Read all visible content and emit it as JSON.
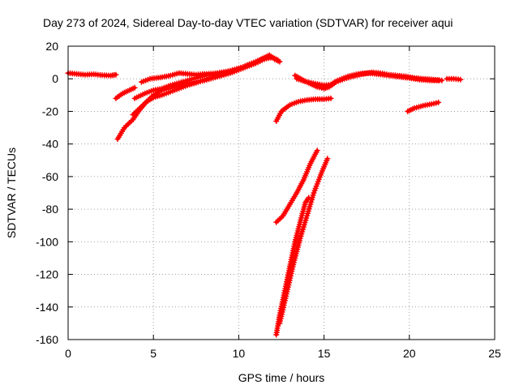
{
  "chart_data": {
    "type": "scatter",
    "title": "Day 273 of 2024, Sidereal Day-to-day VTEC variation (SDTVAR) for receiver aqui",
    "xlabel": "GPS time / hours",
    "ylabel": "SDTVAR / TECUs",
    "xlim": [
      0,
      25
    ],
    "ylim": [
      -160,
      20
    ],
    "xticks": [
      "0",
      "5",
      "10",
      "15",
      "20",
      "25"
    ],
    "yticks": [
      "20",
      "0",
      "-20",
      "-40",
      "-60",
      "-80",
      "-100",
      "-120",
      "-140",
      "-160"
    ],
    "grid": true,
    "legend": "none",
    "marker": "plus",
    "color": "#ff0000",
    "series": [
      {
        "points": [
          [
            0.0,
            3.5
          ],
          [
            0.5,
            3.0
          ],
          [
            1.0,
            2.5
          ],
          [
            1.5,
            2.8
          ],
          [
            2.0,
            2.2
          ],
          [
            2.5,
            2.0
          ],
          [
            2.8,
            2.5
          ]
        ]
      },
      {
        "points": [
          [
            2.8,
            -12.0
          ],
          [
            3.2,
            -9.0
          ],
          [
            3.6,
            -7.0
          ],
          [
            3.9,
            -5.5
          ]
        ]
      },
      {
        "points": [
          [
            2.9,
            -37.0
          ],
          [
            3.3,
            -30.0
          ],
          [
            3.8,
            -25.0
          ],
          [
            4.2,
            -19.0
          ],
          [
            4.6,
            -14.0
          ],
          [
            5.0,
            -10.0
          ],
          [
            5.5,
            -7.0
          ],
          [
            6.0,
            -5.5
          ],
          [
            6.5,
            -4.0
          ],
          [
            7.0,
            -3.0
          ],
          [
            7.5,
            -2.0
          ],
          [
            8.0,
            -1.0
          ],
          [
            8.5,
            0.5
          ],
          [
            9.0,
            2.0
          ],
          [
            9.5,
            3.5
          ],
          [
            10.0,
            5.5
          ],
          [
            10.5,
            7.5
          ],
          [
            11.0,
            9.5
          ],
          [
            11.5,
            12.0
          ],
          [
            11.9,
            13.5
          ]
        ]
      },
      {
        "points": [
          [
            3.8,
            -22.0
          ],
          [
            4.2,
            -18.0
          ],
          [
            4.6,
            -14.0
          ],
          [
            5.0,
            -11.5
          ],
          [
            5.5,
            -10.0
          ],
          [
            6.0,
            -8.0
          ],
          [
            6.5,
            -6.0
          ],
          [
            7.0,
            -4.0
          ],
          [
            7.5,
            -2.5
          ],
          [
            8.0,
            -0.5
          ],
          [
            8.5,
            1.0
          ],
          [
            9.0,
            2.5
          ],
          [
            9.5,
            4.0
          ],
          [
            10.0,
            6.0
          ],
          [
            10.5,
            8.5
          ],
          [
            11.0,
            10.5
          ],
          [
            11.4,
            12.5
          ],
          [
            11.8,
            14.5
          ],
          [
            12.1,
            12.0
          ],
          [
            12.4,
            10.5
          ]
        ]
      },
      {
        "points": [
          [
            3.9,
            -12.0
          ],
          [
            4.5,
            -9.0
          ],
          [
            5.0,
            -7.0
          ],
          [
            5.5,
            -6.0
          ],
          [
            6.0,
            -4.0
          ],
          [
            6.5,
            -2.5
          ],
          [
            7.0,
            -1.0
          ],
          [
            7.5,
            0.5
          ],
          [
            8.0,
            2.0
          ],
          [
            8.5,
            3.0
          ],
          [
            9.0,
            4.0
          ],
          [
            9.5,
            4.5
          ]
        ]
      },
      {
        "points": [
          [
            4.3,
            -2.0
          ],
          [
            4.8,
            0.0
          ],
          [
            5.4,
            0.8
          ],
          [
            6.0,
            2.0
          ],
          [
            6.5,
            3.5
          ],
          [
            7.0,
            3.0
          ],
          [
            7.5,
            2.5
          ],
          [
            8.0,
            3.0
          ],
          [
            8.5,
            3.2
          ],
          [
            9.0,
            3.8
          ],
          [
            9.5,
            5.0
          ],
          [
            10.0,
            6.5
          ],
          [
            10.5,
            8.0
          ],
          [
            11.0,
            10.0
          ],
          [
            11.5,
            12.5
          ],
          [
            12.0,
            13.0
          ],
          [
            12.3,
            11.5
          ]
        ]
      },
      {
        "points": [
          [
            12.2,
            -26.0
          ],
          [
            12.5,
            -20.0
          ],
          [
            13.0,
            -16.0
          ],
          [
            13.5,
            -14.0
          ],
          [
            14.0,
            -13.0
          ],
          [
            14.5,
            -12.5
          ],
          [
            15.0,
            -12.5
          ],
          [
            15.4,
            -12.0
          ]
        ]
      },
      {
        "points": [
          [
            13.3,
            2.0
          ],
          [
            13.8,
            -1.0
          ],
          [
            14.2,
            -3.0
          ],
          [
            14.6,
            -5.0
          ],
          [
            15.0,
            -6.0
          ],
          [
            15.3,
            -5.0
          ],
          [
            15.7,
            -2.0
          ],
          [
            16.2,
            0.0
          ],
          [
            16.7,
            1.5
          ],
          [
            17.3,
            3.0
          ],
          [
            17.8,
            4.0
          ],
          [
            18.3,
            3.5
          ],
          [
            18.8,
            2.5
          ],
          [
            19.3,
            2.0
          ],
          [
            19.8,
            1.5
          ],
          [
            20.3,
            0.5
          ],
          [
            20.8,
            0.0
          ],
          [
            21.4,
            -0.5
          ],
          [
            21.9,
            -1.0
          ]
        ]
      },
      {
        "points": [
          [
            13.4,
            0.0
          ],
          [
            14.0,
            -2.0
          ],
          [
            14.5,
            -3.0
          ],
          [
            15.0,
            -4.0
          ],
          [
            15.4,
            -3.5
          ],
          [
            15.8,
            -1.0
          ],
          [
            16.4,
            1.5
          ],
          [
            17.0,
            3.0
          ],
          [
            17.6,
            3.5
          ],
          [
            18.2,
            2.8
          ],
          [
            18.8,
            2.0
          ],
          [
            19.4,
            1.2
          ],
          [
            20.0,
            0.5
          ],
          [
            20.6,
            -0.5
          ],
          [
            21.2,
            -1.0
          ],
          [
            21.7,
            -1.0
          ]
        ]
      },
      {
        "points": [
          [
            22.2,
            0.0
          ],
          [
            22.6,
            0.0
          ],
          [
            23.0,
            -0.5
          ]
        ]
      },
      {
        "points": [
          [
            19.9,
            -20.0
          ],
          [
            20.3,
            -18.0
          ],
          [
            20.8,
            -16.5
          ],
          [
            21.3,
            -15.5
          ],
          [
            21.7,
            -14.5
          ]
        ]
      },
      {
        "points": [
          [
            12.2,
            -88.0
          ],
          [
            12.6,
            -84.0
          ],
          [
            13.0,
            -77.0
          ],
          [
            13.4,
            -70.0
          ],
          [
            13.8,
            -62.0
          ],
          [
            14.2,
            -52.0
          ],
          [
            14.6,
            -44.0
          ]
        ]
      },
      {
        "points": [
          [
            12.2,
            -157.0
          ],
          [
            12.4,
            -145.0
          ],
          [
            12.7,
            -130.0
          ],
          [
            13.0,
            -115.0
          ],
          [
            13.3,
            -100.0
          ],
          [
            13.6,
            -88.0
          ],
          [
            13.9,
            -76.0
          ],
          [
            14.1,
            -73.0
          ]
        ]
      },
      {
        "points": [
          [
            12.4,
            -150.0
          ],
          [
            12.8,
            -132.0
          ],
          [
            13.2,
            -114.0
          ],
          [
            13.6,
            -98.0
          ],
          [
            14.0,
            -84.0
          ],
          [
            14.4,
            -70.0
          ],
          [
            14.8,
            -59.0
          ],
          [
            15.2,
            -49.0
          ]
        ]
      }
    ]
  }
}
